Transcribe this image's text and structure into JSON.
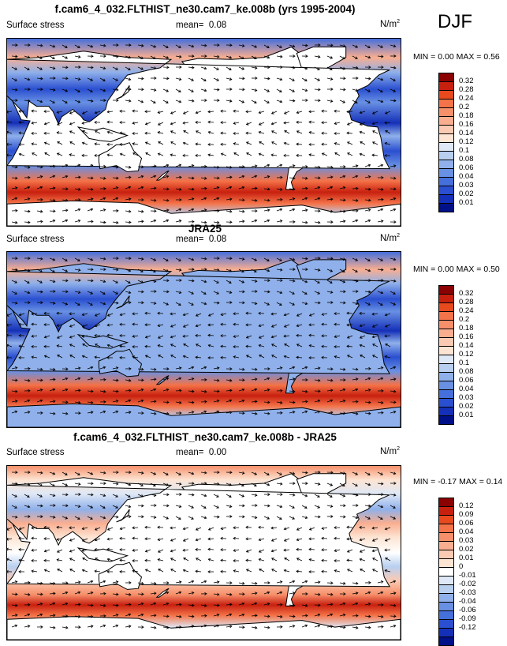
{
  "season": "DJF",
  "chart_data": [
    {
      "type": "heatmap",
      "title": "f.cam6_4_032.FLTHIST_ne30.cam7_ke.008b (yrs 1995-2004)",
      "variable_label": "Surface stress",
      "mean_label": "mean=",
      "mean_value": "0.08",
      "units_base": "N/m",
      "units_exp": "2",
      "min_label": "MIN =",
      "min_value": "0.00",
      "max_label": "MAX =",
      "max_value": "0.56",
      "colorbar_levels": [
        "0.32",
        "0.28",
        "0.24",
        "0.2",
        "0.18",
        "0.16",
        "0.14",
        "0.12",
        "0.1",
        "0.08",
        "0.06",
        "0.04",
        "0.03",
        "0.02",
        "0.01"
      ],
      "colorbar_colors": [
        "#8b0000",
        "#c8200f",
        "#e84a1e",
        "#f47348",
        "#f6906b",
        "#f9ae90",
        "#fbcab3",
        "#fde4d3",
        "#dfe8f6",
        "#b8cff0",
        "#8fb0ea",
        "#6890e3",
        "#456fdb",
        "#2a4fd0",
        "#1530b8",
        "#001088"
      ],
      "colorbar_ticks": [
        "0.32",
        "0.28",
        "0.24",
        "0.2",
        "0.18",
        "0.16",
        "0.14",
        "0.12",
        "0.1",
        "0.08",
        "0.06",
        "0.04",
        "0.03",
        "0.02",
        "0.01"
      ]
    },
    {
      "type": "heatmap",
      "title": "JRA25",
      "variable_label": "Surface stress",
      "mean_label": "mean=",
      "mean_value": "0.08",
      "units_base": "N/m",
      "units_exp": "2",
      "min_label": "MIN =",
      "min_value": "0.00",
      "max_label": "MAX =",
      "max_value": "0.50",
      "colorbar_colors": [
        "#8b0000",
        "#c8200f",
        "#e84a1e",
        "#f47348",
        "#f6906b",
        "#f9ae90",
        "#fbcab3",
        "#fde4d3",
        "#dfe8f6",
        "#b8cff0",
        "#8fb0ea",
        "#6890e3",
        "#456fdb",
        "#2a4fd0",
        "#1530b8",
        "#001088"
      ],
      "colorbar_ticks": [
        "0.32",
        "0.28",
        "0.24",
        "0.2",
        "0.18",
        "0.16",
        "0.14",
        "0.12",
        "0.1",
        "0.08",
        "0.06",
        "0.04",
        "0.03",
        "0.02",
        "0.01"
      ]
    },
    {
      "type": "heatmap",
      "title": "f.cam6_4_032.FLTHIST_ne30.cam7_ke.008b - JRA25",
      "variable_label": "Surface stress",
      "mean_label": "mean=",
      "mean_value": "0.00",
      "units_base": "N/m",
      "units_exp": "2",
      "min_label": "MIN =",
      "min_value": "-0.17",
      "max_label": "MAX =",
      "max_value": "0.14",
      "colorbar_colors": [
        "#8b0000",
        "#c8200f",
        "#e84a1e",
        "#f47348",
        "#f6906b",
        "#f9ae90",
        "#fbcab3",
        "#fde4d3",
        "#ffffff",
        "#dfe8f6",
        "#b8cff0",
        "#8fb0ea",
        "#6890e3",
        "#456fdb",
        "#2a4fd0",
        "#1530b8",
        "#001088"
      ],
      "colorbar_ticks": [
        "0.12",
        "0.09",
        "0.06",
        "0.04",
        "0.03",
        "0.02",
        "0.01",
        "0",
        "-0.01",
        "-0.02",
        "-0.03",
        "-0.04",
        "-0.06",
        "-0.09",
        "-0.12"
      ]
    }
  ]
}
